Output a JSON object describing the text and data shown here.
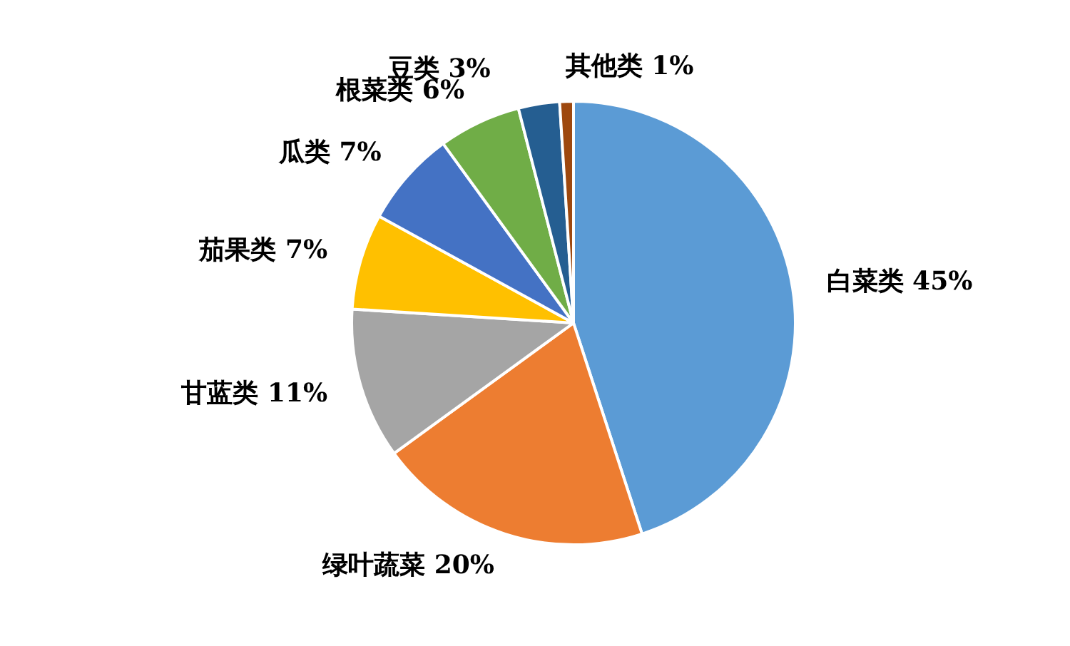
{
  "chart_data": {
    "type": "pie",
    "categories": [
      "白菜类",
      "绿叶蔬菜",
      "甘蓝类",
      "茄果类",
      "瓜类",
      "根菜类",
      "豆类",
      "其他类"
    ],
    "values": [
      45,
      20,
      11,
      7,
      7,
      6,
      3,
      1
    ],
    "value_labels": [
      "45%",
      "20%",
      "11%",
      "7%",
      "7%",
      "6%",
      "3%",
      "1%"
    ],
    "colors": [
      "#5b9bd5",
      "#ed7d31",
      "#a5a5a5",
      "#ffc000",
      "#4472c4",
      "#70ad47",
      "#255e91",
      "#9e480e"
    ],
    "legend": false
  }
}
